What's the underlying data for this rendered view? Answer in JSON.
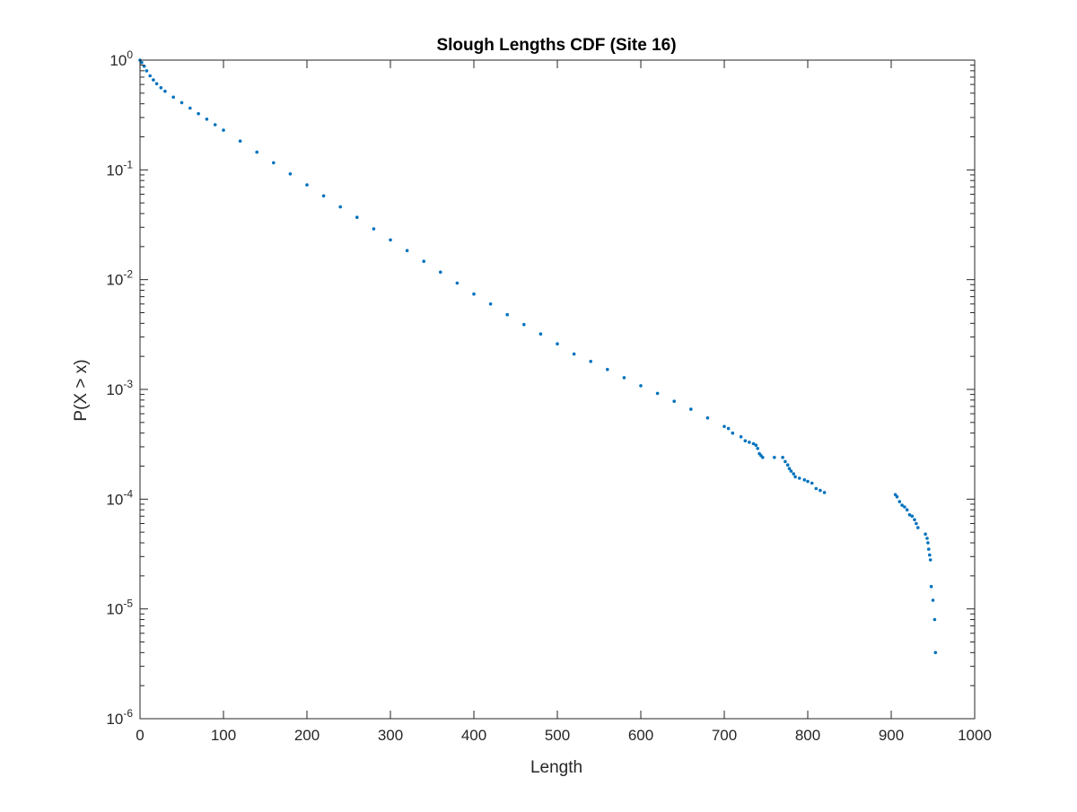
{
  "chart_data": {
    "type": "scatter",
    "title": "Slough Lengths CDF (Site 16)",
    "xlabel": "Length",
    "ylabel": "P(X > x)",
    "xlim": [
      0,
      1000
    ],
    "ylim": [
      1e-06,
      1
    ],
    "y_scale": "log",
    "grid": false,
    "legend": "none",
    "marker_color": "#0072BD",
    "x_ticks": [
      {
        "value": 0,
        "label": "0"
      },
      {
        "value": 100,
        "label": "100"
      },
      {
        "value": 200,
        "label": "200"
      },
      {
        "value": 300,
        "label": "300"
      },
      {
        "value": 400,
        "label": "400"
      },
      {
        "value": 500,
        "label": "500"
      },
      {
        "value": 600,
        "label": "600"
      },
      {
        "value": 700,
        "label": "700"
      },
      {
        "value": 800,
        "label": "800"
      },
      {
        "value": 900,
        "label": "900"
      },
      {
        "value": 1000,
        "label": "1000"
      }
    ],
    "y_ticks": [
      {
        "value": 1,
        "base": "10",
        "exp": "0"
      },
      {
        "value": 0.1,
        "base": "10",
        "exp": "-1"
      },
      {
        "value": 0.01,
        "base": "10",
        "exp": "-2"
      },
      {
        "value": 0.001,
        "base": "10",
        "exp": "-3"
      },
      {
        "value": 0.0001,
        "base": "10",
        "exp": "-4"
      },
      {
        "value": 1e-05,
        "base": "10",
        "exp": "-5"
      },
      {
        "value": 1e-06,
        "base": "10",
        "exp": "-6"
      }
    ],
    "series": [
      {
        "points": [
          [
            0,
            1.0
          ],
          [
            2,
            0.95
          ],
          [
            5,
            0.88
          ],
          [
            8,
            0.8
          ],
          [
            12,
            0.72
          ],
          [
            16,
            0.66
          ],
          [
            20,
            0.61
          ],
          [
            25,
            0.56
          ],
          [
            30,
            0.52
          ],
          [
            40,
            0.46
          ],
          [
            50,
            0.41
          ],
          [
            60,
            0.365
          ],
          [
            70,
            0.325
          ],
          [
            80,
            0.29
          ],
          [
            90,
            0.258
          ],
          [
            100,
            0.23
          ],
          [
            120,
            0.183
          ],
          [
            140,
            0.145
          ],
          [
            160,
            0.116
          ],
          [
            180,
            0.092
          ],
          [
            200,
            0.073
          ],
          [
            220,
            0.058
          ],
          [
            240,
            0.046
          ],
          [
            260,
            0.037
          ],
          [
            280,
            0.029
          ],
          [
            300,
            0.023
          ],
          [
            320,
            0.0184
          ],
          [
            340,
            0.0147
          ],
          [
            360,
            0.0117
          ],
          [
            380,
            0.0093
          ],
          [
            400,
            0.0074
          ],
          [
            420,
            0.006
          ],
          [
            440,
            0.0048
          ],
          [
            460,
            0.0039
          ],
          [
            480,
            0.0032
          ],
          [
            500,
            0.0026
          ],
          [
            520,
            0.0021
          ],
          [
            540,
            0.0018
          ],
          [
            560,
            0.00152
          ],
          [
            580,
            0.00128
          ],
          [
            600,
            0.00108
          ],
          [
            620,
            0.00092
          ],
          [
            640,
            0.00078
          ],
          [
            660,
            0.00066
          ],
          [
            680,
            0.00055
          ],
          [
            700,
            0.00046
          ],
          [
            705,
            0.00044
          ],
          [
            710,
            0.0004
          ],
          [
            720,
            0.00037
          ],
          [
            725,
            0.00034
          ],
          [
            730,
            0.00033
          ],
          [
            735,
            0.00032
          ],
          [
            738,
            0.00031
          ],
          [
            740,
            0.00029
          ],
          [
            742,
            0.00026
          ],
          [
            744,
            0.00025
          ],
          [
            746,
            0.00024
          ],
          [
            760,
            0.00024
          ],
          [
            770,
            0.00024
          ],
          [
            773,
            0.00022
          ],
          [
            776,
            0.000205
          ],
          [
            778,
            0.00019
          ],
          [
            780,
            0.00018
          ],
          [
            783,
            0.00017
          ],
          [
            785,
            0.00016
          ],
          [
            790,
            0.000155
          ],
          [
            796,
            0.00015
          ],
          [
            800,
            0.000145
          ],
          [
            805,
            0.00014
          ],
          [
            810,
            0.000125
          ],
          [
            815,
            0.00012
          ],
          [
            820,
            0.000115
          ],
          [
            905,
            0.00011
          ],
          [
            907,
            0.000105
          ],
          [
            910,
            9.5e-05
          ],
          [
            913,
            8.8e-05
          ],
          [
            916,
            8.5e-05
          ],
          [
            919,
            8e-05
          ],
          [
            922,
            7.2e-05
          ],
          [
            925,
            7e-05
          ],
          [
            928,
            6.5e-05
          ],
          [
            930,
            6e-05
          ],
          [
            932,
            5.5e-05
          ],
          [
            941,
            4.8e-05
          ],
          [
            943,
            4.4e-05
          ],
          [
            944,
            4e-05
          ],
          [
            945,
            3.5e-05
          ],
          [
            946,
            3.1e-05
          ],
          [
            947,
            2.8e-05
          ],
          [
            948,
            1.6e-05
          ],
          [
            950,
            1.2e-05
          ],
          [
            952,
            8e-06
          ],
          [
            953,
            4e-06
          ]
        ]
      }
    ]
  }
}
